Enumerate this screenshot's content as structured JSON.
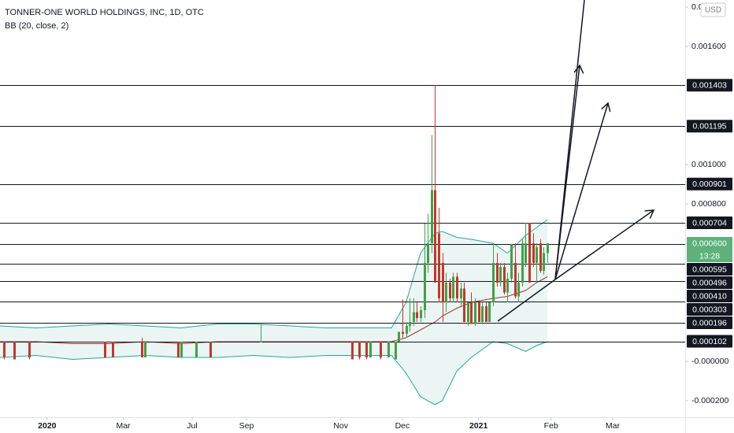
{
  "chart_data": {
    "type": "candlestick",
    "title": "TONNER-ONE WORLD HOLDINGS, INC, 1D, OTC",
    "subtitle": "BB (20, close, 2)",
    "currency": "USD",
    "xlim": [
      0,
      189
    ],
    "ylim": [
      -0.000284,
      0.001836
    ],
    "xticks": [
      {
        "value": 13,
        "label": "2020"
      },
      {
        "value": 34,
        "label": "Mar"
      },
      {
        "value": 53,
        "label": "Jul"
      },
      {
        "value": 68,
        "label": "Sep"
      },
      {
        "value": 94,
        "label": "Nov"
      },
      {
        "value": 111,
        "label": "Dec"
      },
      {
        "value": 132,
        "label": "2021"
      },
      {
        "value": 152,
        "label": "Feb"
      },
      {
        "value": 169,
        "label": "Mar"
      }
    ],
    "yticks": [
      {
        "value": 0.0018,
        "label": "0.001800"
      },
      {
        "value": 0.0016,
        "label": "0.001600"
      },
      {
        "value": 0.001,
        "label": "0.001000"
      },
      {
        "value": 0.0008,
        "label": "0.000800"
      },
      {
        "value": 0,
        "label": "-0.000000"
      },
      {
        "value": -0.0002,
        "label": "-0.000200"
      }
    ],
    "up_color": "#43a047",
    "down_color": "#c0392b",
    "candles": {
      "x": [
        1,
        4,
        8,
        29,
        31,
        39,
        40,
        49,
        50,
        54,
        58,
        72,
        97,
        99,
        101,
        102,
        105,
        107,
        109,
        110,
        111,
        112,
        113,
        114,
        115,
        116,
        117,
        118,
        119,
        120,
        121,
        122,
        123,
        124,
        125,
        126,
        127,
        128,
        129,
        130,
        131,
        132,
        133,
        134,
        135,
        136,
        137,
        138,
        139,
        140,
        141,
        142,
        143,
        144,
        145,
        146,
        147,
        148,
        149,
        150,
        151
      ],
      "open": [
        0.0001,
        0.0001,
        0.0001,
        0.0001,
        0.0001,
        0.0001,
        2e-05,
        0.0001,
        2e-05,
        2e-05,
        0.0001,
        0.0001,
        0.0001,
        0.0001,
        0.0001,
        2e-05,
        0.0001,
        2e-05,
        1e-05,
        0.0001,
        0.00015,
        0.00014,
        0.00018,
        0.0002,
        0.00025,
        0.00022,
        0.00026,
        0.0005,
        0.0006,
        0.00087,
        0.00065,
        0.0005,
        0.0003,
        0.0004,
        0.00032,
        0.00043,
        0.00032,
        0.00037,
        0.0002,
        0.0003,
        0.00019,
        0.0003,
        0.0002,
        0.00028,
        0.0002,
        0.0003,
        0.0005,
        0.0004,
        0.00048,
        0.00035,
        0.00042,
        0.0005,
        0.00033,
        0.0004,
        0.0005,
        0.000704,
        0.0006,
        0.0005,
        0.0006,
        0.00046,
        0.00055
      ],
      "high": [
        0.0001,
        0.0001,
        0.0001,
        0.0001,
        0.0001,
        0.00012,
        0.0001,
        0.0001,
        0.0001,
        0.0001,
        0.0001,
        0.00019,
        0.0001,
        0.0001,
        0.0001,
        0.0001,
        0.0001,
        0.0001,
        0.0001,
        0.00015,
        0.000315,
        0.0002,
        0.00032,
        0.00032,
        0.0003,
        0.00028,
        0.0007,
        0.00075,
        0.00115,
        0.001403,
        0.00078,
        0.00055,
        0.00045,
        0.00042,
        0.00045,
        0.00045,
        0.0004,
        0.0004,
        0.0003,
        0.00035,
        0.00032,
        0.00031,
        0.0003,
        0.0003,
        0.0003,
        0.0006,
        0.00055,
        0.0005,
        0.0005,
        0.00045,
        0.000595,
        0.0006,
        0.00045,
        0.00062,
        0.000704,
        0.000704,
        0.00065,
        0.0006,
        0.00062,
        0.00058,
        0.0006
      ],
      "low": [
        1e-05,
        1e-05,
        1e-05,
        2e-05,
        2e-05,
        2e-05,
        2e-05,
        2e-05,
        2e-05,
        2e-05,
        2e-05,
        0.0001,
        1e-05,
        1e-05,
        1e-05,
        2e-05,
        1e-05,
        2e-05,
        1e-05,
        0.0001,
        0.00012,
        0.00012,
        0.00015,
        0.00018,
        0.0002,
        0.0002,
        0.00022,
        0.00045,
        0.00055,
        0.0004,
        0.0003,
        0.0002,
        0.00025,
        0.0003,
        0.0003,
        0.0003,
        0.00028,
        0.0002,
        0.00018,
        0.00019,
        0.00018,
        0.0002,
        0.00019,
        0.0002,
        0.0002,
        0.00028,
        0.00038,
        0.00038,
        0.00034,
        0.0003,
        0.0004,
        0.00032,
        0.0003,
        0.00038,
        0.00048,
        0.0004,
        0.00048,
        0.0004,
        0.00045,
        0.00044,
        0.0005
      ],
      "close": [
        2e-05,
        1e-05,
        2e-05,
        2e-05,
        2e-05,
        2e-05,
        0.0001,
        2e-05,
        0.0001,
        0.0001,
        2e-05,
        0.0001,
        1e-05,
        2e-05,
        2e-05,
        0.0001,
        2e-05,
        0.0001,
        0.0001,
        0.00015,
        0.00014,
        0.00018,
        0.0002,
        0.00025,
        0.00022,
        0.00026,
        0.0005,
        0.0006,
        0.00087,
        0.0004,
        0.00032,
        0.0003,
        0.0004,
        0.00032,
        0.00043,
        0.00032,
        0.00037,
        0.0002,
        0.0003,
        0.00019,
        0.0003,
        0.0002,
        0.00028,
        0.0002,
        0.0003,
        0.0005,
        0.0004,
        0.00048,
        0.00035,
        0.00042,
        0.000595,
        0.00033,
        0.0004,
        0.0006,
        0.0006,
        0.0004,
        0.0005,
        0.00058,
        0.00046,
        0.00055,
        0.0006
      ]
    },
    "bands": {
      "x": [
        0,
        10,
        20,
        30,
        40,
        50,
        60,
        70,
        80,
        90,
        100,
        108,
        112,
        116,
        120,
        122,
        126,
        130,
        136,
        140,
        145,
        148,
        151
      ],
      "upper": [
        0.00018,
        0.00017,
        0.00018,
        0.00019,
        0.00018,
        0.00017,
        0.00019,
        0.00019,
        0.00018,
        0.00017,
        0.00017,
        0.00017,
        0.0003,
        0.00055,
        0.00065,
        0.00066,
        0.00063,
        0.00062,
        0.0006,
        0.00055,
        0.00064,
        0.00068,
        0.00072
      ],
      "basis": [
        0.0001,
        0.0001,
        9e-05,
        9e-05,
        0.0001,
        9e-05,
        0.0001,
        0.0001,
        0.0001,
        0.0001,
        0.0001,
        0.0001,
        0.00012,
        0.00016,
        0.0002,
        0.00023,
        0.00027,
        0.0003,
        0.00032,
        0.00033,
        0.00036,
        0.0004,
        0.00043
      ],
      "lower": [
        2e-05,
        3e-05,
        1e-05,
        2e-05,
        3e-05,
        2e-05,
        2e-05,
        3e-05,
        2e-05,
        3e-05,
        3e-05,
        3e-05,
        -6e-05,
        -0.00018,
        -0.00022,
        -0.0002,
        -5e-05,
        2e-05,
        0.0001,
        9e-05,
        5e-05,
        8e-05,
        0.0001
      ],
      "band_color": "#26a69a",
      "basis_color": "#a5372b",
      "fill_color": "#eaf5f4"
    },
    "level_color": "#131722",
    "levels": [
      0.001403,
      0.001195,
      0.000901,
      0.000704,
      0.000595,
      0.000496,
      {
        "value": 0.00041,
        "label": "0.000410"
      },
      0.000303,
      0.000196,
      0.000102
    ],
    "last_price": {
      "value": 0.0006,
      "label": "0.000600"
    },
    "countdown": "13:28",
    "last_color": "#5cb27a"
  }
}
